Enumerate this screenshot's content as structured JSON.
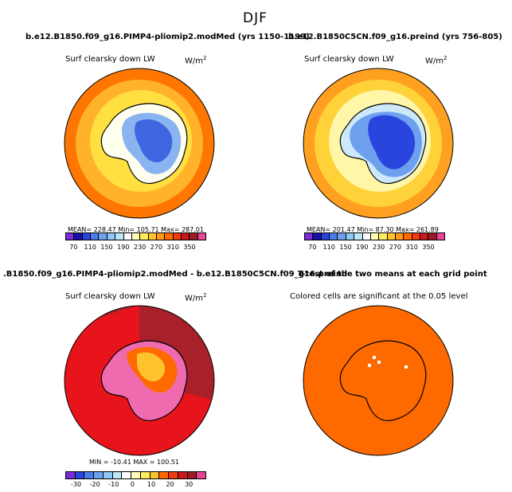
{
  "page": {
    "title": "DJF"
  },
  "panels": [
    {
      "title": "b.e12.B1850.f09_g16.PIMP4-pliomip2.modMed (yrs 1150-1199)",
      "variable": "Surf clearsky down LW",
      "units": "W/m",
      "units_exp": "2",
      "stats": "MEAN= 228.47   Min= 105.71   Max= 287.01",
      "colorbar": {
        "labels": [
          "70",
          "110",
          "150",
          "190",
          "230",
          "270",
          "310",
          "350"
        ],
        "colors": [
          "#7b2bd9",
          "#1a10a8",
          "#2a45dd",
          "#4d7be8",
          "#6ea0f0",
          "#8ec8f5",
          "#bfe6f7",
          "#ffffff",
          "#ffffb8",
          "#ffec5a",
          "#ffc32e",
          "#ff9a1a",
          "#ff6a00",
          "#f03a10",
          "#c8191e",
          "#9b1b25",
          "#e8459a"
        ]
      },
      "map": {
        "ocean_outer": "#ff7700",
        "ocean_mid": "#ffb22a",
        "ocean_inner": "#ffe040",
        "land": "#fffff0",
        "deep": "#3f66e0",
        "mid": "#8ab4f0"
      }
    },
    {
      "title": "b.e12.B1850C5CN.f09_g16.preind (yrs 756-805)",
      "variable": "Surf clearsky down LW",
      "units": "W/m",
      "units_exp": "2",
      "stats": "MEAN= 201.47   Min=  87.30   Max= 261.89",
      "colorbar": {
        "labels": [
          "70",
          "110",
          "150",
          "190",
          "230",
          "270",
          "310",
          "350"
        ],
        "colors": [
          "#7b2bd9",
          "#1a10a8",
          "#2a45dd",
          "#4d7be8",
          "#6ea0f0",
          "#8ec8f5",
          "#bfe6f7",
          "#ffffff",
          "#ffffb8",
          "#ffec5a",
          "#ffc32e",
          "#ff9a1a",
          "#ff6a00",
          "#f03a10",
          "#c8191e",
          "#9b1b25",
          "#e8459a"
        ]
      },
      "map": {
        "ocean_outer": "#ffa020",
        "ocean_mid": "#ffd23a",
        "ocean_inner": "#fff6a8",
        "land": "#cde9f9",
        "deep": "#2a45dd",
        "mid": "#6ea0f0"
      }
    },
    {
      "title": ".B1850.f09_g16.PIMP4-pliomip2.modMed - b.e12.B1850C5CN.f09_g16.preind",
      "variable": "Surf clearsky down LW",
      "units": "W/m",
      "units_exp": "2",
      "stats": "MIN = -10.41  MAX = 100.51",
      "colorbar": {
        "labels": [
          "-30",
          "-20",
          "-10",
          "0",
          "10",
          "20",
          "30"
        ],
        "colors": [
          "#7b2bd9",
          "#2a45dd",
          "#4d7be8",
          "#6ea0f0",
          "#8ec8f5",
          "#bfe6f7",
          "#ffffff",
          "#ffffb8",
          "#ffec5a",
          "#ffc32e",
          "#ff6a00",
          "#f03a10",
          "#c8191e",
          "#9b1b25",
          "#e8459a"
        ]
      },
      "map": {
        "ocean_outer": "#a8202a",
        "ocean_mid": "#e8141c",
        "land": "#f06ab0",
        "warm": "#ffc32e",
        "hot": "#ff6a00"
      }
    },
    {
      "title": "T-test of the two means at each grid point",
      "variable": "Colored cells are significant at the 0.05 level",
      "map": {
        "fill": "#ff6a00"
      }
    }
  ]
}
